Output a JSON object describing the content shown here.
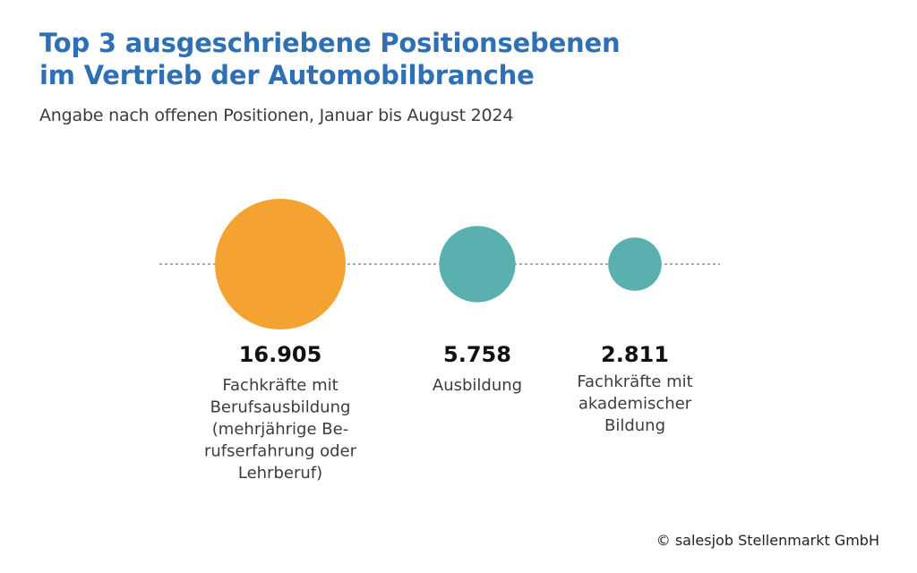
{
  "header": {
    "title_line1": "Top 3 ausgeschriebene Positionsebenen",
    "title_line2": "im Vertrieb der Automobilbranche",
    "subtitle": "Angabe nach offenen Positionen, Januar bis August 2024"
  },
  "chart_data": {
    "type": "bubble",
    "title": "Top 3 ausgeschriebene Positionsebenen im Vertrieb der Automobilbranche",
    "subtitle": "Angabe nach offenen Positionen, Januar bis August 2024",
    "categories": [
      "Fachkräfte mit Berufsausbildung (mehrjährige Berufserfahrung oder Lehrberuf)",
      "Ausbildung",
      "Fachkräfte mit akademischer Bildung"
    ],
    "values": [
      16905,
      5758,
      2811
    ],
    "value_labels": [
      "16.905",
      "5.758",
      "2.811"
    ],
    "label_lines": [
      [
        "Fachkräfte mit",
        "Berufsausbildung",
        "(mehrjährige Be-",
        "rufserfahrung oder",
        "Lehrberuf)"
      ],
      [
        "Ausbildung"
      ],
      [
        "Fachkräfte mit",
        "akademischer",
        "Bildung"
      ]
    ],
    "colors": [
      "#f4a232",
      "#5ab0ae",
      "#5ab0ae"
    ],
    "baseline": "dashed",
    "legend": "none"
  },
  "footer": {
    "copyright": "© salesjob Stellenmarkt GmbH"
  }
}
